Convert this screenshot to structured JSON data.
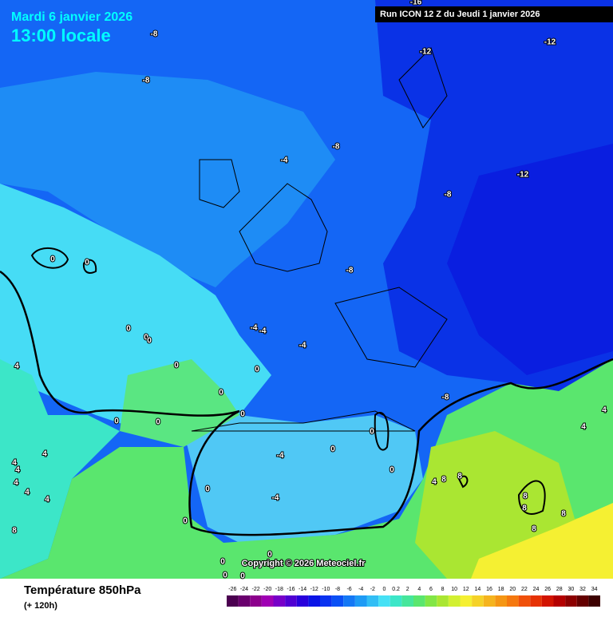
{
  "header": {
    "date": "Mardi 6 janvier 2026",
    "time": "13:00 locale",
    "run": "Run ICON 12 Z du Jeudi 1 janvier 2026"
  },
  "copyright": "Copyright © 2026 Meteociel.fr",
  "footer": {
    "title": "Température 850hPa",
    "lead": "(+ 120h)"
  },
  "contour_labels": [
    "-8",
    "-8",
    "-16",
    "-12",
    "-12",
    "-8",
    "-4",
    "-12",
    "-8",
    "0",
    "0",
    "-8",
    "0",
    "-4",
    "-4",
    "0",
    "0",
    "-4",
    "4",
    "0",
    "0",
    "0",
    "-8",
    "0",
    "0",
    "0",
    "4",
    "4",
    "0",
    "4",
    "-4",
    "0",
    "4",
    "4",
    "0",
    "4",
    "8",
    "8",
    "4",
    "0",
    "4",
    "-4",
    "4",
    "8",
    "8",
    "0",
    "8",
    "8",
    "8",
    "0",
    "0",
    "0",
    "0"
  ],
  "scale": {
    "labels": [
      "-26",
      "-24",
      "-22",
      "-20",
      "-18",
      "-16",
      "-14",
      "-12",
      "-10",
      "-8",
      "-6",
      "-4",
      "-2",
      "0",
      "0.2",
      "2",
      "4",
      "6",
      "8",
      "10",
      "12",
      "14",
      "16",
      "18",
      "20",
      "22",
      "24",
      "26",
      "28",
      "30",
      "32",
      "34"
    ],
    "colors": [
      "#4b0050",
      "#6a006e",
      "#8c008c",
      "#a000b4",
      "#7800c8",
      "#5000d2",
      "#2800dc",
      "#0a14e6",
      "#0a32f0",
      "#0a50f5",
      "#1478f5",
      "#1e9bf5",
      "#32bef5",
      "#46e1f5",
      "#3ce6c8",
      "#46e69b",
      "#5ae66e",
      "#82e646",
      "#aae632",
      "#d2f032",
      "#f5f032",
      "#f5d228",
      "#f5b41e",
      "#f59614",
      "#f5780f",
      "#f0500a",
      "#e63205",
      "#d21400",
      "#b40000",
      "#8c0000",
      "#640000",
      "#3c0000"
    ]
  }
}
